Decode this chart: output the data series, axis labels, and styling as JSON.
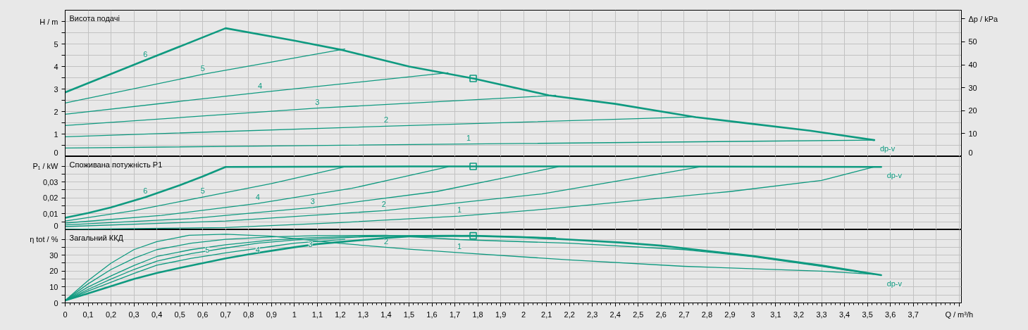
{
  "chart_data": [
    {
      "type": "line",
      "title": "Висота подачі",
      "ylabel": "H / m",
      "y2label": "Δp / kPa",
      "grid": true,
      "tick_labels": "y",
      "xlim": [
        0,
        3.91
      ],
      "xticks": [
        0,
        0.1,
        0.2,
        0.3,
        0.4,
        0.5,
        0.6,
        0.7,
        0.8,
        0.9,
        1,
        1.1,
        1.2,
        1.3,
        1.4,
        1.5,
        1.6,
        1.7,
        1.8,
        1.9,
        2,
        2.1,
        2.2,
        2.3,
        2.4,
        2.5,
        2.6,
        2.7,
        2.8,
        2.9,
        3,
        3.1,
        3.2,
        3.3,
        3.4,
        3.5,
        3.6,
        3.7,
        3.8,
        3.9
      ],
      "ylim": [
        0,
        6.5
      ],
      "yticks": [
        0,
        {
          "value": 0.5,
          "label": null
        },
        1,
        {
          "value": 1.5,
          "label": null
        },
        2,
        {
          "value": 2.5,
          "label": null
        },
        3,
        {
          "value": 3.5,
          "label": null
        },
        4,
        {
          "value": 4.5,
          "label": null
        },
        5,
        {
          "value": 5.5,
          "label": null
        },
        {
          "value": 6,
          "label": null
        }
      ],
      "y2lim": [
        0,
        63.8
      ],
      "y2ticks": [
        0,
        10,
        20,
        30,
        40,
        50,
        {
          "value": 60,
          "label": null
        }
      ],
      "series": [
        {
          "color": "#0f9a80",
          "x": [
            0,
            0.35,
            0.7,
            1.0,
            1.21,
            1.5,
            1.78,
            2.11,
            2.4,
            2.75,
            3.0,
            3.25,
            3.53
          ],
          "values": [
            2.85,
            4.28,
            5.7,
            5.15,
            4.73,
            4.0,
            3.47,
            2.72,
            2.34,
            1.75,
            1.45,
            1.15,
            0.73
          ]
        },
        {
          "color": "#0f9a80",
          "x": [
            0,
            0.6,
            1.22
          ],
          "values": [
            2.38,
            3.65,
            4.78
          ]
        },
        {
          "color": "#0f9a80",
          "x": [
            0,
            0.85,
            1.67
          ],
          "values": [
            1.88,
            2.85,
            3.72
          ]
        },
        {
          "color": "#0f9a80",
          "x": [
            0,
            1.1,
            2.14
          ],
          "values": [
            1.38,
            2.15,
            2.72
          ]
        },
        {
          "color": "#0f9a80",
          "x": [
            0,
            1.4,
            2.75
          ],
          "values": [
            0.88,
            1.35,
            1.76
          ]
        },
        {
          "color": "#0f9a80",
          "x": [
            0,
            1.0,
            1.76,
            2.0,
            3.0,
            3.53
          ],
          "values": [
            0.38,
            0.48,
            0.56,
            0.58,
            0.68,
            0.73
          ]
        },
        {
          "type": "scatter",
          "marker": "square",
          "color": "#0f9a80",
          "x": [
            1.78
          ],
          "values": [
            3.47
          ]
        }
      ],
      "annotations": [
        {
          "text": "6",
          "x": 0.35,
          "y": 4.28
        },
        {
          "text": "5",
          "x": 0.6,
          "y": 3.65
        },
        {
          "text": "4",
          "x": 0.85,
          "y": 2.85
        },
        {
          "text": "3",
          "x": 1.1,
          "y": 2.15
        },
        {
          "text": "2",
          "x": 1.4,
          "y": 1.35
        },
        {
          "text": "1",
          "x": 1.76,
          "y": 0.56
        },
        {
          "text": "dp-v",
          "x": 3.53,
          "y": 0.73
        }
      ]
    },
    {
      "type": "line",
      "title": "Споживана потужність P1",
      "ylabel": "P₁ / kW",
      "grid": true,
      "tick_labels": "y",
      "xlim": [
        0,
        3.91
      ],
      "xticks": [
        0,
        0.1,
        0.2,
        0.3,
        0.4,
        0.5,
        0.6,
        0.7,
        0.8,
        0.9,
        1,
        1.1,
        1.2,
        1.3,
        1.4,
        1.5,
        1.6,
        1.7,
        1.8,
        1.9,
        2,
        2.1,
        2.2,
        2.3,
        2.4,
        2.5,
        2.6,
        2.7,
        2.8,
        2.9,
        3,
        3.1,
        3.2,
        3.3,
        3.4,
        3.5,
        3.6,
        3.7,
        3.8,
        3.9
      ],
      "ylim": [
        0,
        0.046
      ],
      "yticks": [
        0,
        {
          "value": 0.005,
          "label": null
        },
        {
          "value": 0.01,
          "label": "0,01"
        },
        {
          "value": 0.015,
          "label": null
        },
        {
          "value": 0.02,
          "label": "0,02"
        },
        {
          "value": 0.025,
          "label": null
        },
        {
          "value": 0.03,
          "label": "0,03"
        },
        {
          "value": 0.035,
          "label": null
        },
        {
          "value": 0.04,
          "label": null
        }
      ],
      "series": [
        {
          "color": "#0f9a80",
          "x": [
            0,
            0.1,
            0.2,
            0.35,
            0.5,
            0.6,
            0.7,
            1.5,
            2.5,
            3.56
          ],
          "values": [
            0.0075,
            0.0105,
            0.014,
            0.0205,
            0.028,
            0.0335,
            0.0395,
            0.0398,
            0.0398,
            0.0395
          ]
        },
        {
          "color": "#0f9a80",
          "x": [
            0,
            0.3,
            0.6,
            0.9,
            1.22
          ],
          "values": [
            0.0055,
            0.012,
            0.0205,
            0.029,
            0.0395
          ]
        },
        {
          "color": "#0f9a80",
          "x": [
            0,
            0.42,
            0.84,
            1.25,
            1.67
          ],
          "values": [
            0.0042,
            0.009,
            0.0165,
            0.026,
            0.0395
          ]
        },
        {
          "color": "#0f9a80",
          "x": [
            0,
            0.55,
            1.08,
            1.62,
            2.15
          ],
          "values": [
            0.003,
            0.007,
            0.014,
            0.024,
            0.0395
          ]
        },
        {
          "color": "#0f9a80",
          "x": [
            0,
            0.7,
            1.39,
            2.08,
            2.77
          ],
          "values": [
            0.002,
            0.0055,
            0.012,
            0.0225,
            0.0395
          ]
        },
        {
          "color": "#0f9a80",
          "x": [
            0,
            0.7,
            1.2,
            1.72,
            2.1,
            2.51,
            2.9,
            3.3,
            3.53
          ],
          "values": [
            0.0003,
            0.0014,
            0.0045,
            0.0086,
            0.013,
            0.0186,
            0.024,
            0.031,
            0.0395
          ]
        },
        {
          "type": "scatter",
          "marker": "square",
          "color": "#0f9a80",
          "x": [
            1.78
          ],
          "values": [
            0.0398
          ]
        }
      ],
      "annotations": [
        {
          "text": "6",
          "x": 0.35,
          "y": 0.0205
        },
        {
          "text": "5",
          "x": 0.6,
          "y": 0.0205
        },
        {
          "text": "4",
          "x": 0.84,
          "y": 0.0165
        },
        {
          "text": "3",
          "x": 1.08,
          "y": 0.014
        },
        {
          "text": "2",
          "x": 1.39,
          "y": 0.012
        },
        {
          "text": "1",
          "x": 1.72,
          "y": 0.0086
        },
        {
          "text": "dp-v",
          "x": 3.56,
          "y": 0.0395
        }
      ]
    },
    {
      "type": "line",
      "title": "Загальний ККД",
      "ylabel": "η tot / %",
      "xlabel": "Q / m³/h",
      "grid": true,
      "xlim": [
        0,
        3.91
      ],
      "xticks": [
        0,
        {
          "value": 0.1,
          "label": "0,1"
        },
        {
          "value": 0.2,
          "label": "0,2"
        },
        {
          "value": 0.3,
          "label": "0,3"
        },
        {
          "value": 0.4,
          "label": "0,4"
        },
        {
          "value": 0.5,
          "label": "0,5"
        },
        {
          "value": 0.6,
          "label": "0,6"
        },
        {
          "value": 0.7,
          "label": "0,7"
        },
        {
          "value": 0.8,
          "label": "0,8"
        },
        {
          "value": 0.9,
          "label": "0,9"
        },
        1,
        {
          "value": 1.1,
          "label": "1,1"
        },
        {
          "value": 1.2,
          "label": "1,2"
        },
        {
          "value": 1.3,
          "label": "1,3"
        },
        {
          "value": 1.4,
          "label": "1,4"
        },
        {
          "value": 1.5,
          "label": "1,5"
        },
        {
          "value": 1.6,
          "label": "1,6"
        },
        {
          "value": 1.7,
          "label": "1,7"
        },
        {
          "value": 1.8,
          "label": "1,8"
        },
        {
          "value": 1.9,
          "label": "1,9"
        },
        2,
        {
          "value": 2.1,
          "label": "2,1"
        },
        {
          "value": 2.2,
          "label": "2,2"
        },
        {
          "value": 2.3,
          "label": "2,3"
        },
        {
          "value": 2.4,
          "label": "2,4"
        },
        {
          "value": 2.5,
          "label": "2,5"
        },
        {
          "value": 2.6,
          "label": "2,6"
        },
        {
          "value": 2.7,
          "label": "2,7"
        },
        {
          "value": 2.8,
          "label": "2,8"
        },
        {
          "value": 2.9,
          "label": "2,9"
        },
        3,
        {
          "value": 3.1,
          "label": "3,1"
        },
        {
          "value": 3.2,
          "label": "3,2"
        },
        {
          "value": 3.3,
          "label": "3,3"
        },
        {
          "value": 3.4,
          "label": "3,4"
        },
        {
          "value": 3.5,
          "label": "3,5"
        },
        {
          "value": 3.6,
          "label": "3,6"
        },
        {
          "value": 3.7,
          "label": "3,7"
        },
        {
          "value": 3.8,
          "label": null
        },
        {
          "value": 3.9,
          "label": null
        }
      ],
      "ylim": [
        0,
        46
      ],
      "yticks": [
        0,
        {
          "value": 5,
          "label": null
        },
        10,
        {
          "value": 15,
          "label": null
        },
        20,
        {
          "value": 25,
          "label": null
        },
        30,
        {
          "value": 35,
          "label": null
        },
        {
          "value": 40,
          "label": null
        }
      ],
      "series": [
        {
          "color": "#0f9a80",
          "x": [
            0,
            0.1,
            0.2,
            0.3,
            0.4,
            0.5,
            0.6,
            0.7,
            0.8,
            0.9,
            1.0,
            1.1,
            1.2,
            1.3,
            1.4,
            1.5,
            1.78,
            2.0,
            2.2,
            2.42,
            2.6,
            2.73,
            3.0,
            3.3,
            3.56
          ],
          "values": [
            1.5,
            6,
            10.5,
            15,
            18.8,
            22,
            25,
            28,
            30.5,
            32.8,
            35,
            37,
            38.3,
            39.6,
            40.8,
            41.8,
            42.2,
            41.3,
            39.8,
            38,
            36,
            33.8,
            29.5,
            23.5,
            17.5
          ]
        },
        {
          "color": "#0f9a80",
          "x": [
            0,
            0.1,
            0.2,
            0.3,
            0.4,
            0.55,
            0.62,
            0.7,
            0.9,
            1.0,
            1.22
          ],
          "values": [
            1.5,
            7.5,
            13,
            18.5,
            23.7,
            28,
            29.6,
            31.5,
            35.5,
            37.5,
            40
          ]
        },
        {
          "color": "#0f9a80",
          "x": [
            0,
            0.1,
            0.2,
            0.3,
            0.4,
            0.55,
            0.7,
            0.84,
            1.0,
            1.3,
            1.67
          ],
          "values": [
            1.5,
            8.5,
            15,
            21,
            26.3,
            31,
            34.5,
            37.5,
            39.5,
            41.5,
            42.3
          ]
        },
        {
          "color": "#0f9a80",
          "x": [
            0,
            0.1,
            0.2,
            0.3,
            0.4,
            0.55,
            0.7,
            0.9,
            1.07,
            1.4,
            1.7,
            2.14
          ],
          "values": [
            1.5,
            10,
            17,
            23.5,
            29.2,
            33.5,
            36.5,
            39.5,
            41,
            42.3,
            42.5,
            41
          ]
        },
        {
          "color": "#0f9a80",
          "x": [
            0,
            0.1,
            0.2,
            0.3,
            0.4,
            0.55,
            0.7,
            0.9,
            1.1,
            1.4,
            1.72,
            2.2,
            2.7,
            3.0,
            3.3,
            3.5
          ],
          "values": [
            1.5,
            12,
            21,
            28,
            33.5,
            37.5,
            40,
            41.5,
            42.3,
            42.5,
            39.8,
            37.5,
            33.5,
            29,
            23,
            18.5
          ]
        },
        {
          "color": "#0f9a80",
          "x": [
            0,
            0.1,
            0.2,
            0.3,
            0.4,
            0.54,
            0.7,
            0.9,
            1.2,
            1.5,
            1.72,
            2.2,
            2.7,
            3.3,
            3.53
          ],
          "values": [
            1.5,
            14,
            25,
            33.5,
            38.5,
            42.5,
            43.2,
            42,
            37.4,
            33.8,
            31.6,
            27,
            23,
            20,
            18
          ]
        },
        {
          "type": "scatter",
          "marker": "square",
          "color": "#0f9a80",
          "x": [
            1.78
          ],
          "values": [
            42.2
          ]
        }
      ],
      "annotations": [
        {
          "text": "5",
          "x": 0.62,
          "y": 29.6
        },
        {
          "text": "4",
          "x": 0.84,
          "y": 37.5
        },
        {
          "text": "3",
          "x": 1.07,
          "y": 41
        },
        {
          "text": "2",
          "x": 1.4,
          "y": 42.5
        },
        {
          "text": "1",
          "x": 1.72,
          "y": 31.6
        },
        {
          "text": "dp-v",
          "x": 3.56,
          "y": 17.5
        }
      ]
    }
  ]
}
